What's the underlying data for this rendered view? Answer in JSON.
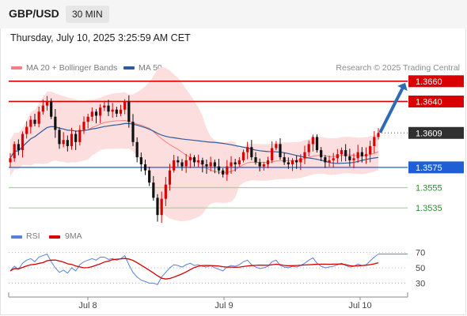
{
  "header": {
    "pair": "GBP/USD",
    "timeframe": "30 MIN",
    "datetime": "Thursday, July 10, 2025 3:25:59 AM CET"
  },
  "legend": {
    "ma20": "MA 20 + Bollinger Bands",
    "ma50": "MA 50",
    "rsi": "RSI",
    "ma9": "9MA",
    "credit": "Research © 2025 Trading Central"
  },
  "colors": {
    "resistance": "#d80000",
    "pivot": "#1f5fd6",
    "support": "#9dd49a",
    "support_text": "#2e8b2e",
    "last_price": "#303030",
    "ma20": "#f08080",
    "bollinger_fill": "#fcdede",
    "ma50": "#2f5b9b",
    "rsi": "#5b7fd9",
    "rsi_ma": "#d60000",
    "candle_up": "#d80000",
    "candle_down": "#111111",
    "arrow": "#2d6cb4"
  },
  "chart_data": {
    "type": "candlestick",
    "ylim": [
      1.3518,
      1.367
    ],
    "x_tick_labels": [
      "Jul 8",
      "Jul 9",
      "Jul 10"
    ],
    "levels": [
      {
        "label": "1.3660",
        "value": 1.366,
        "kind": "resistance"
      },
      {
        "label": "1.3640",
        "value": 1.364,
        "kind": "resistance"
      },
      {
        "label": "1.3609",
        "value": 1.3609,
        "kind": "last"
      },
      {
        "label": "1.3575",
        "value": 1.3575,
        "kind": "pivot"
      },
      {
        "label": "1.3555",
        "value": 1.3555,
        "kind": "support"
      },
      {
        "label": "1.3535",
        "value": 1.3535,
        "kind": "support"
      }
    ],
    "price_path": [
      1.3584,
      1.3598,
      1.3592,
      1.3608,
      1.3615,
      1.3622,
      1.3618,
      1.363,
      1.3636,
      1.364,
      1.3625,
      1.3612,
      1.3598,
      1.3602,
      1.3596,
      1.3608,
      1.36,
      1.3612,
      1.362,
      1.3625,
      1.363,
      1.3626,
      1.3634,
      1.3636,
      1.363,
      1.3632,
      1.3628,
      1.3632,
      1.364,
      1.362,
      1.36,
      1.3585,
      1.3578,
      1.3572,
      1.356,
      1.3545,
      1.3528,
      1.3544,
      1.3558,
      1.3572,
      1.3582,
      1.358,
      1.3576,
      1.3582,
      1.3585,
      1.358,
      1.3582,
      1.3578,
      1.3576,
      1.358,
      1.3576,
      1.3572,
      1.3568,
      1.3576,
      1.358,
      1.3578,
      1.3582,
      1.359,
      1.3595,
      1.3585,
      1.358,
      1.3576,
      1.3578,
      1.3582,
      1.3594,
      1.3598,
      1.3585,
      1.358,
      1.3578,
      1.3582,
      1.358,
      1.3584,
      1.359,
      1.3598,
      1.3605,
      1.3592,
      1.3585,
      1.358,
      1.3582,
      1.3584,
      1.3588,
      1.3592,
      1.3586,
      1.3582,
      1.3584,
      1.359,
      1.3586,
      1.3588,
      1.3596,
      1.3605,
      1.3609
    ],
    "rsi": {
      "ylim": [
        20,
        80
      ],
      "levels": [
        70,
        50,
        30
      ],
      "level_labels": [
        "70",
        "50",
        "30"
      ],
      "values": [
        46,
        52,
        48,
        56,
        60,
        62,
        58,
        64,
        66,
        68,
        58,
        50,
        44,
        47,
        43,
        50,
        46,
        54,
        58,
        60,
        62,
        60,
        64,
        64,
        61,
        62,
        60,
        62,
        66,
        54,
        44,
        38,
        34,
        32,
        30,
        30,
        28,
        38,
        44,
        50,
        54,
        53,
        51,
        54,
        56,
        53,
        54,
        52,
        51,
        53,
        50,
        48,
        46,
        51,
        53,
        52,
        54,
        58,
        60,
        54,
        51,
        49,
        50,
        52,
        58,
        60,
        53,
        51,
        50,
        52,
        51,
        53,
        56,
        60,
        63,
        56,
        52,
        50,
        51,
        52,
        54,
        56,
        53,
        51,
        52,
        55,
        53,
        54,
        59,
        64,
        68
      ]
    },
    "forecast": {
      "from": 1.3609,
      "to": 1.366
    }
  }
}
